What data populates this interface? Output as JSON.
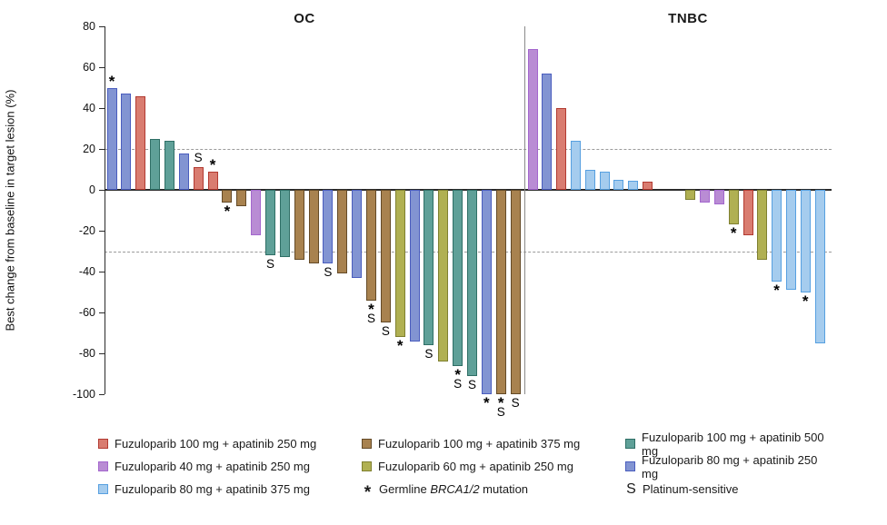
{
  "chart_data": {
    "type": "bar",
    "subtype": "waterfall",
    "ylabel": "Best change from baseline in target lesion (%)",
    "ylim": [
      -100,
      80
    ],
    "yticks": [
      80,
      60,
      40,
      20,
      0,
      -20,
      -40,
      -60,
      -80,
      -100
    ],
    "reference_lines": [
      20,
      -30
    ],
    "grid": "dashed-reference-only",
    "legend_position": "bottom",
    "colors": {
      "red": {
        "fill": "#D97C70",
        "border": "#B23A31",
        "label": "Fuzuloparib 100 mg + apatinib 250 mg"
      },
      "purple": {
        "fill": "#B98CD4",
        "border": "#A467CE",
        "label": "Fuzuloparib 40 mg + apatinib 250 mg"
      },
      "lightblue": {
        "fill": "#A5CCEE",
        "border": "#57A0E0",
        "label": "Fuzuloparib 80 mg + apatinib 375 mg"
      },
      "brown": {
        "fill": "#A8824F",
        "border": "#644A27",
        "label": "Fuzuloparib 100 mg + apatinib 375 mg"
      },
      "olive": {
        "fill": "#B0B052",
        "border": "#7F8030",
        "label": "Fuzuloparib 60 mg + apatinib 250 mg"
      },
      "teal": {
        "fill": "#5FA098",
        "border": "#2F6F66",
        "label": "Fuzuloparib 100 mg + apatinib 500 mg"
      },
      "blueviolet": {
        "fill": "#8294D2",
        "border": "#4A5DBE",
        "label": "Fuzuloparib 80 mg + apatinib 250 mg"
      }
    },
    "marker_meanings": {
      "star": {
        "symbol": "*",
        "label_parts": [
          "Germline ",
          "BRCA1/2",
          " mutation"
        ]
      },
      "s": {
        "symbol": "S",
        "label": "Platinum-sensitive"
      }
    },
    "groups": [
      {
        "title": "OC",
        "bars": [
          {
            "value": 50,
            "color": "blueviolet",
            "marks": [
              "*"
            ]
          },
          {
            "value": 47,
            "color": "blueviolet"
          },
          {
            "value": 46,
            "color": "red"
          },
          {
            "value": 25,
            "color": "teal"
          },
          {
            "value": 24,
            "color": "teal"
          },
          {
            "value": 18,
            "color": "blueviolet"
          },
          {
            "value": 11,
            "color": "red",
            "marks": [
              "S"
            ]
          },
          {
            "value": 9,
            "color": "red",
            "marks": [
              "*"
            ]
          },
          {
            "value": -6,
            "color": "brown",
            "marks": [
              "*"
            ]
          },
          {
            "value": -8,
            "color": "brown"
          },
          {
            "value": -22,
            "color": "purple"
          },
          {
            "value": -32,
            "color": "teal",
            "marks": [
              "S"
            ]
          },
          {
            "value": -33,
            "color": "teal"
          },
          {
            "value": -34,
            "color": "brown"
          },
          {
            "value": -36,
            "color": "brown"
          },
          {
            "value": -36,
            "color": "blueviolet",
            "marks": [
              "S"
            ]
          },
          {
            "value": -41,
            "color": "brown"
          },
          {
            "value": -43,
            "color": "blueviolet"
          },
          {
            "value": -54,
            "color": "brown",
            "marks": [
              "*",
              "S"
            ]
          },
          {
            "value": -65,
            "color": "brown",
            "marks": [
              "S"
            ]
          },
          {
            "value": -72,
            "color": "olive",
            "marks": [
              "*"
            ]
          },
          {
            "value": -74,
            "color": "blueviolet"
          },
          {
            "value": -76,
            "color": "teal",
            "marks": [
              "S"
            ]
          },
          {
            "value": -84,
            "color": "olive"
          },
          {
            "value": -86,
            "color": "teal",
            "marks": [
              "*",
              "S"
            ]
          },
          {
            "value": -91,
            "color": "teal",
            "marks": [
              "S"
            ]
          },
          {
            "value": -100,
            "color": "blueviolet",
            "marks": [
              "*"
            ]
          },
          {
            "value": -100,
            "color": "brown",
            "marks": [
              "*",
              "S"
            ]
          },
          {
            "value": -100,
            "color": "brown",
            "marks": [
              "S"
            ]
          }
        ]
      },
      {
        "title": "TNBC",
        "bars": [
          {
            "value": 69,
            "color": "purple"
          },
          {
            "value": 57,
            "color": "blueviolet"
          },
          {
            "value": 40,
            "color": "red"
          },
          {
            "value": 24,
            "color": "lightblue"
          },
          {
            "value": 10,
            "color": "lightblue"
          },
          {
            "value": 9,
            "color": "lightblue"
          },
          {
            "value": 5,
            "color": "lightblue"
          },
          {
            "value": 4.5,
            "color": "lightblue"
          },
          {
            "value": 4,
            "color": "red"
          },
          {
            "value": 0,
            "gap": true
          },
          {
            "value": 0,
            "gap": true
          },
          {
            "value": -5,
            "color": "olive"
          },
          {
            "value": -6,
            "color": "purple"
          },
          {
            "value": -7,
            "color": "purple"
          },
          {
            "value": -17,
            "color": "olive",
            "marks": [
              "*"
            ]
          },
          {
            "value": -22,
            "color": "red"
          },
          {
            "value": -34,
            "color": "olive"
          },
          {
            "value": -45,
            "color": "lightblue",
            "marks": [
              "*"
            ]
          },
          {
            "value": -49,
            "color": "lightblue"
          },
          {
            "value": -50,
            "color": "lightblue",
            "marks": [
              "*"
            ]
          },
          {
            "value": -75,
            "color": "lightblue"
          }
        ]
      }
    ],
    "legend_columns": [
      [
        "red",
        "purple",
        "lightblue"
      ],
      [
        "brown",
        "olive",
        "star"
      ],
      [
        "teal",
        "blueviolet",
        "s"
      ]
    ]
  }
}
